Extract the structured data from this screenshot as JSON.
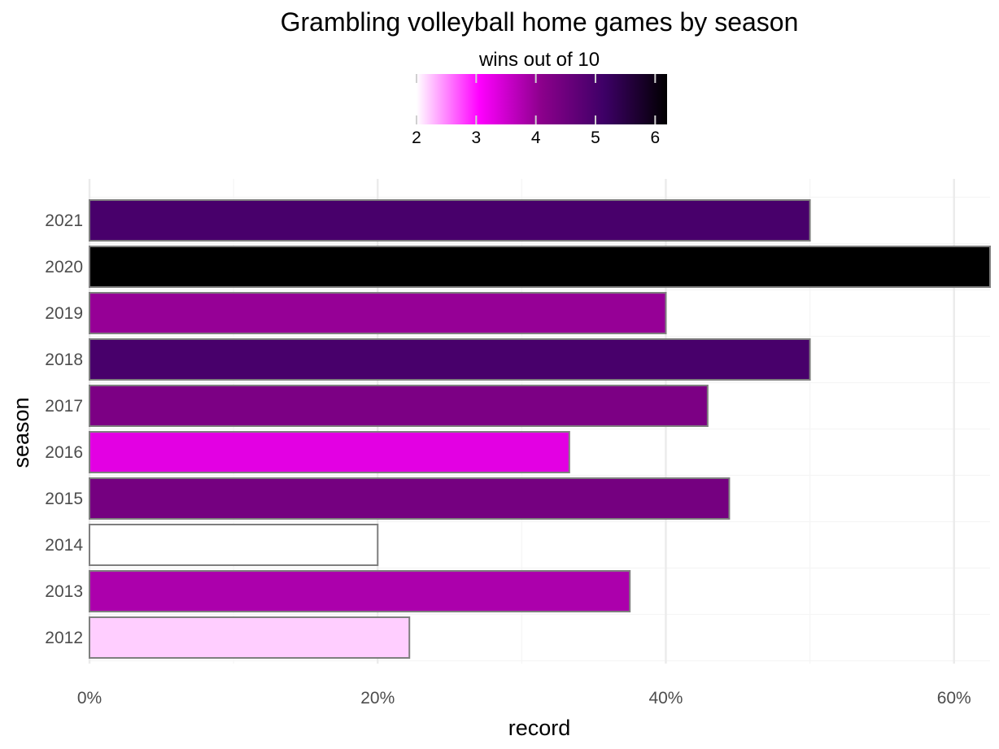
{
  "chart_data": {
    "type": "bar",
    "orientation": "horizontal",
    "title": "Grambling volleyball home games by season",
    "xlabel": "record",
    "ylabel": "season",
    "categories": [
      "2012",
      "2013",
      "2014",
      "2015",
      "2016",
      "2017",
      "2018",
      "2019",
      "2020",
      "2021"
    ],
    "values": [
      0.222,
      0.375,
      0.2,
      0.444,
      0.333,
      0.429,
      0.5,
      0.4,
      0.625,
      0.5
    ],
    "fill_values": [
      2.2,
      3.8,
      2.0,
      4.4,
      3.3,
      4.3,
      5.0,
      4.0,
      6.2,
      5.0
    ],
    "xlim": [
      0,
      0.625
    ],
    "x_ticks": [
      0,
      0.2,
      0.4,
      0.6
    ],
    "x_tick_labels": [
      "0%",
      "20%",
      "40%",
      "60%"
    ],
    "grid": true,
    "legend": {
      "title": "wins out of 10",
      "placement": "top",
      "type": "colorbar",
      "range": [
        2,
        6.2
      ],
      "ticks": [
        2,
        3,
        4,
        5,
        6
      ],
      "tick_labels": [
        "2",
        "3",
        "4",
        "5",
        "6"
      ],
      "gradient": [
        "#ffffff",
        "#ff00ff",
        "#8b008b",
        "#3d0066",
        "#000000"
      ]
    },
    "bar_outline_color": "#7f7f7f"
  }
}
